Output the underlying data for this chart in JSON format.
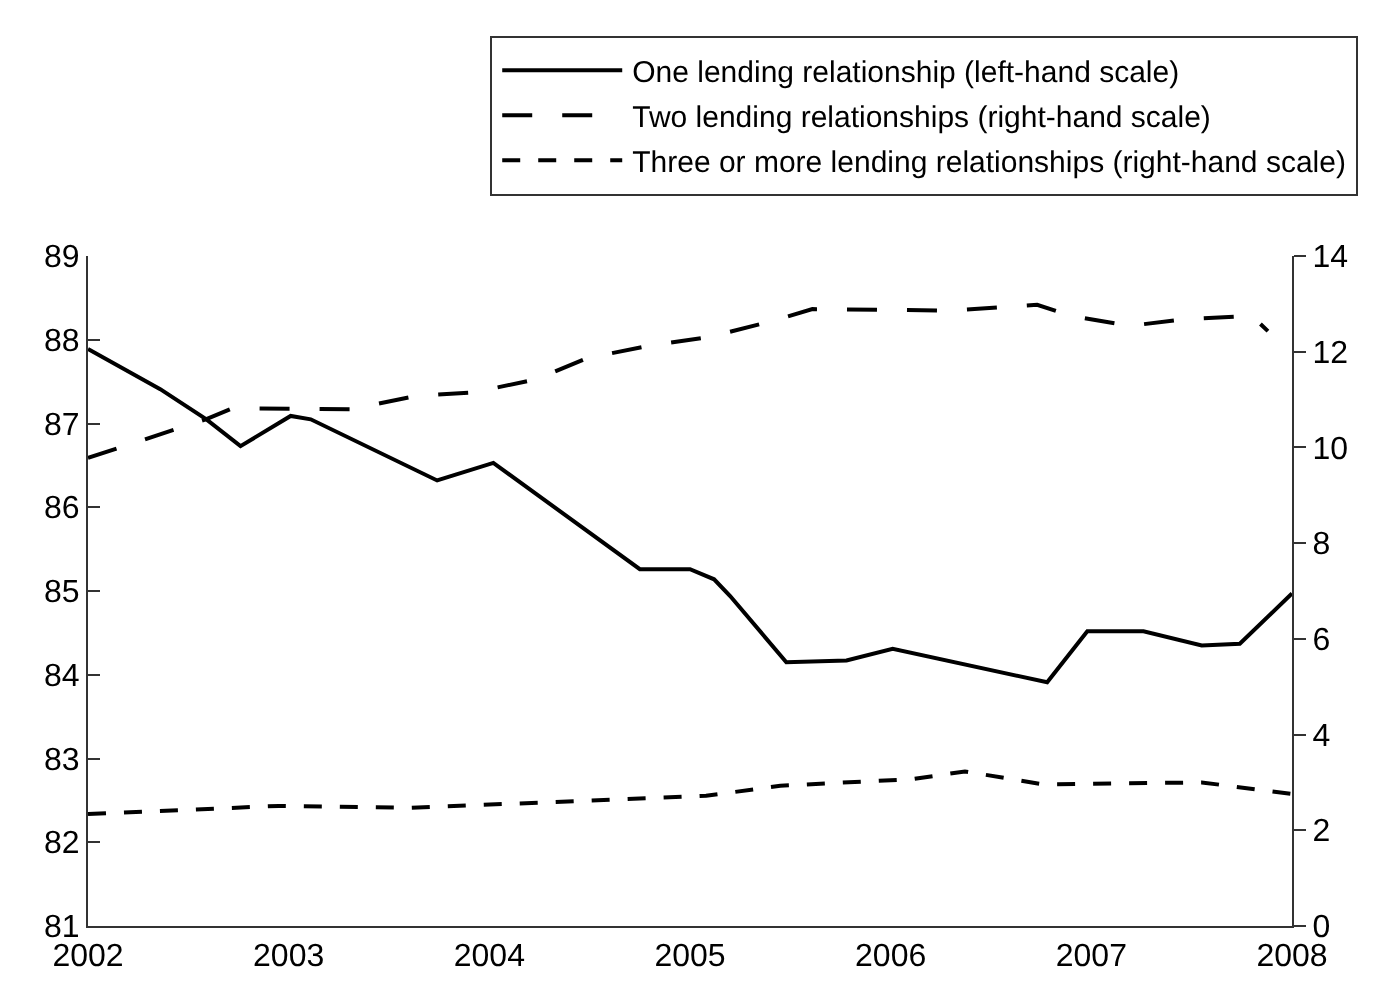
{
  "chart_data": {
    "type": "line",
    "xlim": [
      2002,
      2008
    ],
    "xticks": [
      2002,
      2003,
      2004,
      2005,
      2006,
      2007,
      2008
    ],
    "ylim": [
      81,
      89
    ],
    "yticks": [
      81,
      82,
      83,
      84,
      85,
      86,
      87,
      88,
      89
    ],
    "y2lim": [
      0,
      14
    ],
    "y2ticks": [
      0,
      2,
      4,
      6,
      8,
      10,
      12,
      14
    ],
    "grid": false,
    "legend": "top right",
    "marker": "none",
    "series": [
      {
        "name": "One lending relationship (left-hand scale)",
        "color": "#000000",
        "line_style": "solid",
        "x": [
          2002.0,
          2002.36,
          2002.59,
          2002.76,
          2003.01,
          2003.11,
          2003.74,
          2004.02,
          2004.75,
          2005.0,
          2005.12,
          2005.2,
          2005.48,
          2005.78,
          2006.01,
          2006.78,
          2006.98,
          2007.26,
          2007.55,
          2007.74,
          2008.0
        ],
        "values": [
          87.89,
          87.41,
          87.05,
          86.73,
          87.09,
          87.05,
          86.32,
          86.53,
          85.26,
          85.26,
          85.14,
          84.94,
          84.15,
          84.17,
          84.31,
          83.91,
          84.52,
          84.52,
          84.35,
          84.37,
          84.97
        ]
      },
      {
        "name": "Two lending relationships (right-hand scale)",
        "color": "#000000",
        "line_style": "long dashed",
        "axis": "y2",
        "x": [
          2002.0,
          2002.59,
          2002.72,
          2003.31,
          2003.64,
          2003.92,
          2004.23,
          2004.49,
          2004.79,
          2005.1,
          2005.4,
          2005.61,
          2006.3,
          2006.73,
          2006.9,
          2007.19,
          2007.47,
          2007.8,
          2007.88
        ],
        "values": [
          9.78,
          10.59,
          10.82,
          10.8,
          11.08,
          11.15,
          11.42,
          11.87,
          12.12,
          12.31,
          12.63,
          12.89,
          12.86,
          12.98,
          12.75,
          12.54,
          12.68,
          12.75,
          12.43
        ]
      },
      {
        "name": "Three or more lending relationships (right-hand scale)",
        "color": "#000000",
        "line_style": "dashed",
        "axis": "y2",
        "x": [
          2002.0,
          2002.95,
          2003.6,
          2004.26,
          2005.08,
          2005.45,
          2006.11,
          2006.37,
          2006.76,
          2007.55,
          2008.0
        ],
        "values": [
          2.34,
          2.51,
          2.47,
          2.58,
          2.72,
          2.93,
          3.07,
          3.23,
          2.96,
          3.0,
          2.76
        ]
      }
    ]
  }
}
